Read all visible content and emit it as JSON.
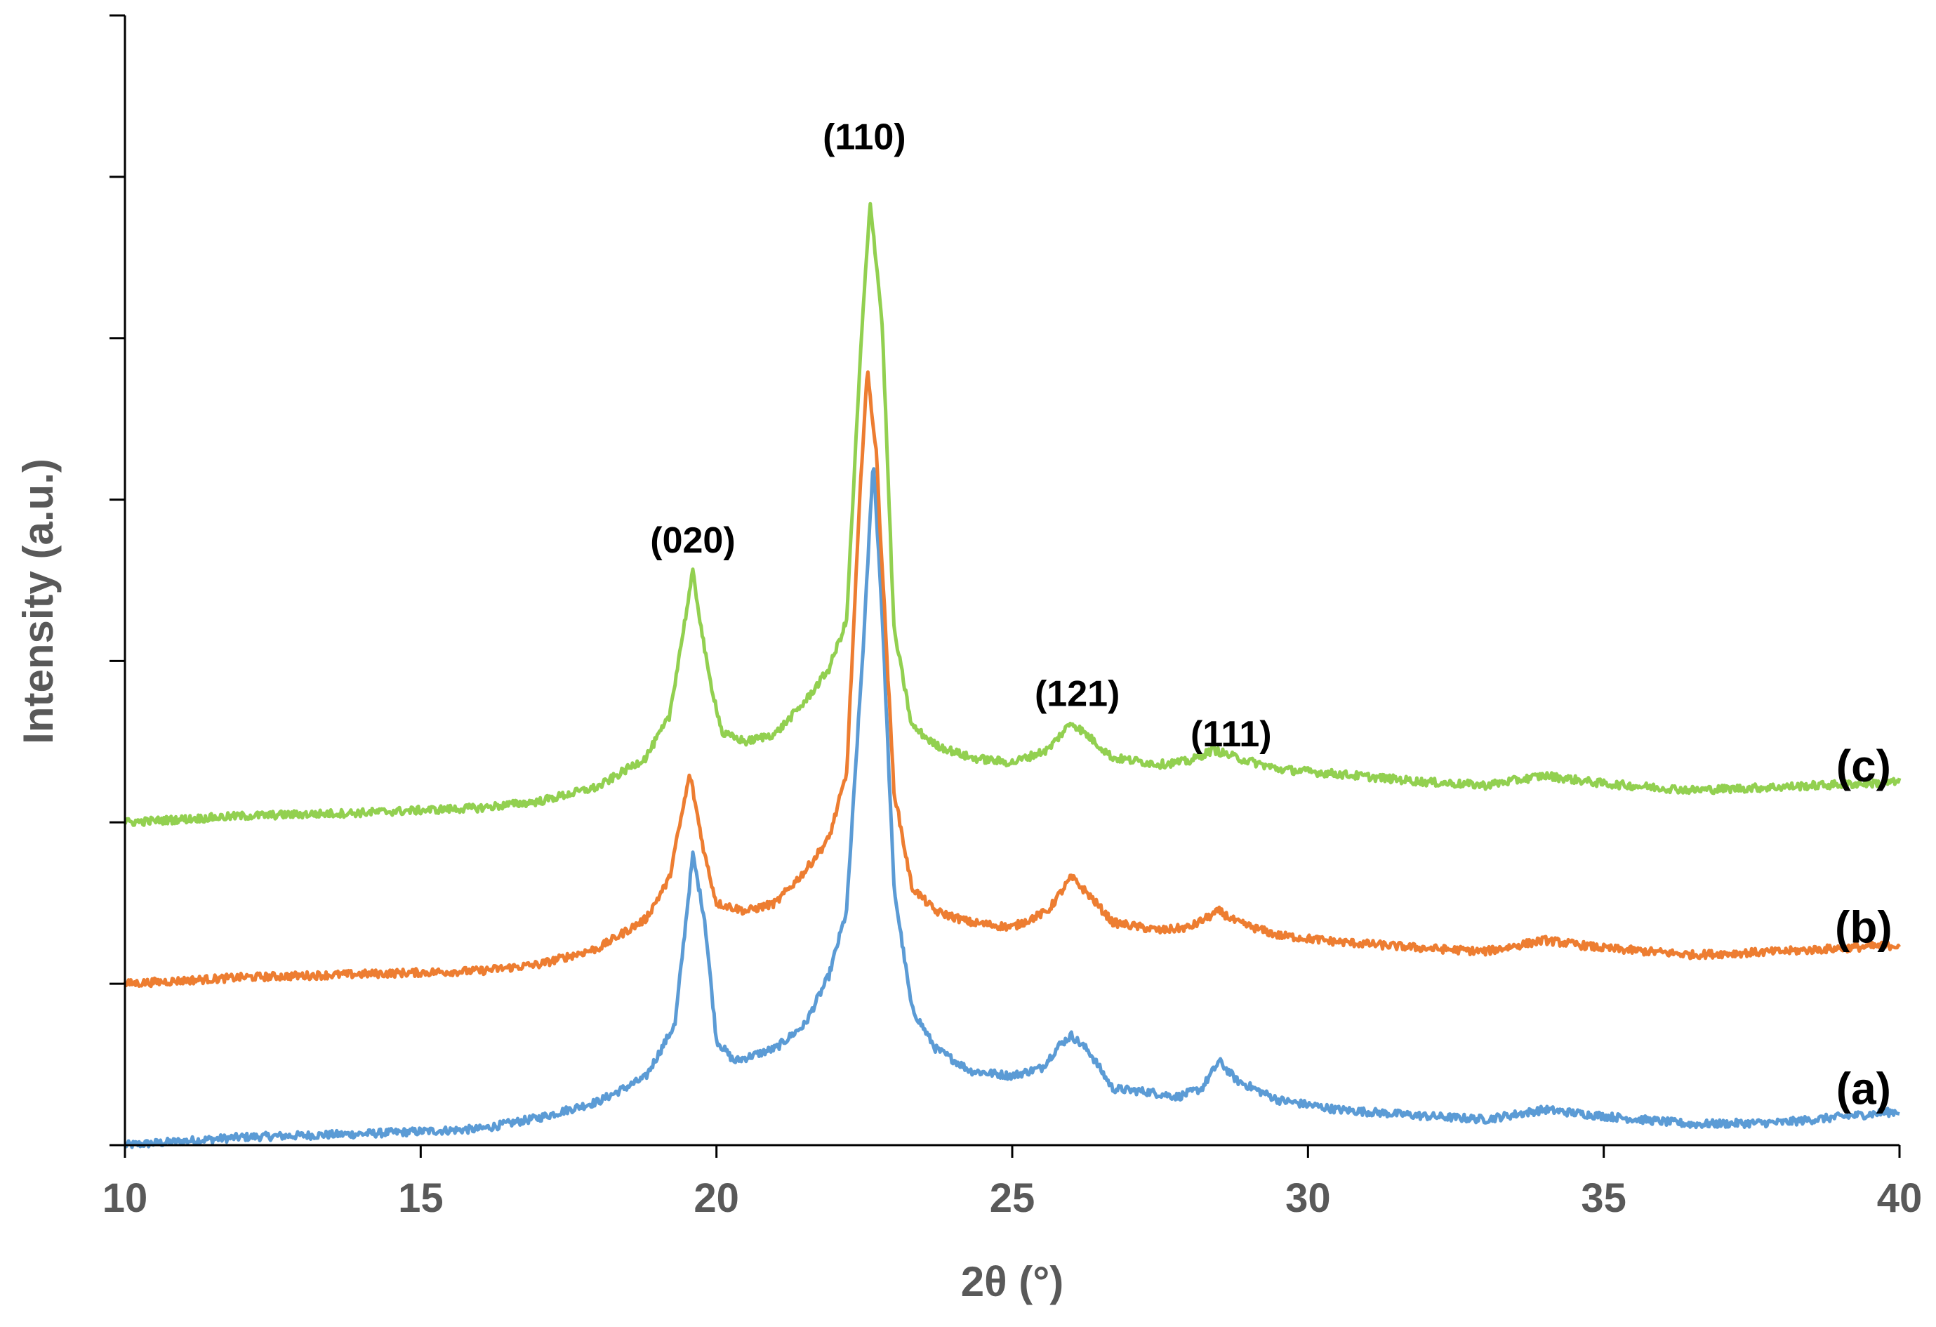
{
  "chart_data": {
    "type": "line",
    "xlabel": "2θ (°)",
    "ylabel": "Intensity (a.u.)",
    "xlim": [
      10,
      40
    ],
    "ylim": [
      0,
      7
    ],
    "x_ticks": [
      "10",
      "15",
      "20",
      "25",
      "30",
      "35",
      "40"
    ],
    "y_ticks_count": 8,
    "grid": false,
    "legend": "none",
    "series": [
      {
        "name": "(a)",
        "color": "#5b9bd5",
        "points": [
          [
            10,
            0.0
          ],
          [
            12,
            0.05
          ],
          [
            14,
            0.07
          ],
          [
            16,
            0.1
          ],
          [
            17,
            0.17
          ],
          [
            18,
            0.27
          ],
          [
            18.8,
            0.42
          ],
          [
            19.3,
            0.75
          ],
          [
            19.6,
            1.8
          ],
          [
            19.8,
            1.4
          ],
          [
            20.0,
            0.65
          ],
          [
            20.3,
            0.52
          ],
          [
            21.0,
            0.6
          ],
          [
            21.5,
            0.75
          ],
          [
            21.9,
            1.05
          ],
          [
            22.2,
            1.45
          ],
          [
            22.5,
            3.2
          ],
          [
            22.65,
            4.25
          ],
          [
            22.8,
            3.3
          ],
          [
            23.0,
            1.6
          ],
          [
            23.3,
            0.85
          ],
          [
            23.7,
            0.6
          ],
          [
            24.3,
            0.46
          ],
          [
            25.0,
            0.43
          ],
          [
            25.5,
            0.48
          ],
          [
            25.8,
            0.62
          ],
          [
            26.0,
            0.68
          ],
          [
            26.3,
            0.58
          ],
          [
            26.7,
            0.35
          ],
          [
            27.3,
            0.33
          ],
          [
            27.8,
            0.3
          ],
          [
            28.2,
            0.35
          ],
          [
            28.5,
            0.52
          ],
          [
            28.8,
            0.4
          ],
          [
            29.5,
            0.28
          ],
          [
            30.5,
            0.22
          ],
          [
            32,
            0.18
          ],
          [
            33,
            0.16
          ],
          [
            34,
            0.22
          ],
          [
            35,
            0.18
          ],
          [
            36.5,
            0.13
          ],
          [
            38,
            0.14
          ],
          [
            40,
            0.21
          ]
        ],
        "label_at": [
          38.8,
          0.35
        ]
      },
      {
        "name": "(b)",
        "color": "#ed7d31",
        "points": [
          [
            10,
            1.0
          ],
          [
            12,
            1.04
          ],
          [
            14,
            1.06
          ],
          [
            16,
            1.08
          ],
          [
            17,
            1.12
          ],
          [
            18,
            1.22
          ],
          [
            18.8,
            1.4
          ],
          [
            19.2,
            1.65
          ],
          [
            19.55,
            2.3
          ],
          [
            19.8,
            1.8
          ],
          [
            20.0,
            1.5
          ],
          [
            20.5,
            1.45
          ],
          [
            21.0,
            1.5
          ],
          [
            21.5,
            1.7
          ],
          [
            21.9,
            1.9
          ],
          [
            22.2,
            2.3
          ],
          [
            22.45,
            4.2
          ],
          [
            22.55,
            4.8
          ],
          [
            22.7,
            4.3
          ],
          [
            23.0,
            2.2
          ],
          [
            23.3,
            1.6
          ],
          [
            23.7,
            1.45
          ],
          [
            24.3,
            1.38
          ],
          [
            25.0,
            1.35
          ],
          [
            25.6,
            1.45
          ],
          [
            26.0,
            1.66
          ],
          [
            26.3,
            1.55
          ],
          [
            26.7,
            1.38
          ],
          [
            27.5,
            1.33
          ],
          [
            28.0,
            1.35
          ],
          [
            28.5,
            1.45
          ],
          [
            28.8,
            1.38
          ],
          [
            29.5,
            1.3
          ],
          [
            30.5,
            1.26
          ],
          [
            32,
            1.22
          ],
          [
            33,
            1.2
          ],
          [
            34,
            1.27
          ],
          [
            35,
            1.22
          ],
          [
            36.5,
            1.18
          ],
          [
            38,
            1.2
          ],
          [
            40,
            1.24
          ]
        ],
        "label_at": [
          38.8,
          1.35
        ]
      },
      {
        "name": "(c)",
        "color": "#92d050",
        "points": [
          [
            10,
            2.0
          ],
          [
            12,
            2.04
          ],
          [
            14,
            2.06
          ],
          [
            16,
            2.09
          ],
          [
            17,
            2.13
          ],
          [
            18,
            2.22
          ],
          [
            18.8,
            2.4
          ],
          [
            19.2,
            2.65
          ],
          [
            19.6,
            3.55
          ],
          [
            19.85,
            2.95
          ],
          [
            20.1,
            2.55
          ],
          [
            20.5,
            2.5
          ],
          [
            21.0,
            2.55
          ],
          [
            21.5,
            2.75
          ],
          [
            21.9,
            2.95
          ],
          [
            22.2,
            3.25
          ],
          [
            22.45,
            5.0
          ],
          [
            22.6,
            5.85
          ],
          [
            22.8,
            5.1
          ],
          [
            23.0,
            3.2
          ],
          [
            23.3,
            2.6
          ],
          [
            23.7,
            2.48
          ],
          [
            24.3,
            2.4
          ],
          [
            25.0,
            2.37
          ],
          [
            25.6,
            2.45
          ],
          [
            26.0,
            2.62
          ],
          [
            26.3,
            2.53
          ],
          [
            26.7,
            2.4
          ],
          [
            27.5,
            2.36
          ],
          [
            28.0,
            2.38
          ],
          [
            28.4,
            2.45
          ],
          [
            28.8,
            2.4
          ],
          [
            29.5,
            2.33
          ],
          [
            30.5,
            2.3
          ],
          [
            32,
            2.25
          ],
          [
            33,
            2.23
          ],
          [
            34,
            2.29
          ],
          [
            35,
            2.24
          ],
          [
            36.5,
            2.2
          ],
          [
            38,
            2.22
          ],
          [
            40,
            2.25
          ]
        ],
        "label_at": [
          38.8,
          2.35
        ]
      }
    ],
    "annotations": [
      {
        "text": "(020)",
        "x": 19.6,
        "y": 3.75
      },
      {
        "text": "(110)",
        "x": 22.5,
        "y": 6.25
      },
      {
        "text": "(121)",
        "x": 26.1,
        "y": 2.8
      },
      {
        "text": "(111)",
        "x": 28.7,
        "y": 2.55
      }
    ]
  }
}
